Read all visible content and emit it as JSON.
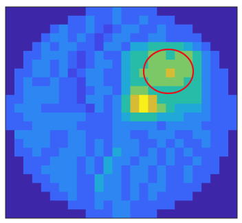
{
  "chart_data": {
    "type": "heatmap",
    "colormap": [
      "#3e26a8",
      "#4433c8",
      "#4147e6",
      "#3a64f7",
      "#2d86f2",
      "#1fa8d8",
      "#27bca8",
      "#7cc867",
      "#d6bc35",
      "#f9f01a"
    ],
    "values": [
      [
        0,
        0,
        0,
        0,
        0,
        0,
        0,
        0,
        0,
        3,
        3,
        3,
        4,
        3,
        3,
        3,
        3,
        0,
        0,
        0,
        0,
        0,
        0,
        0,
        0,
        0
      ],
      [
        0,
        0,
        0,
        0,
        0,
        0,
        0,
        3,
        3,
        4,
        3,
        3,
        4,
        3,
        3,
        4,
        3,
        3,
        3,
        0,
        0,
        0,
        0,
        0,
        0,
        0
      ],
      [
        0,
        0,
        0,
        0,
        0,
        3,
        4,
        3,
        3,
        4,
        3,
        2,
        3,
        4,
        4,
        3,
        3,
        4,
        3,
        3,
        3,
        0,
        0,
        0,
        0,
        0
      ],
      [
        0,
        0,
        0,
        0,
        3,
        4,
        4,
        3,
        4,
        3,
        2,
        3,
        4,
        4,
        3,
        3,
        4,
        4,
        3,
        3,
        3,
        3,
        0,
        0,
        0,
        0
      ],
      [
        0,
        0,
        0,
        3,
        4,
        3,
        4,
        4,
        3,
        3,
        2,
        4,
        4,
        3,
        5,
        5,
        6,
        6,
        6,
        6,
        5,
        4,
        3,
        0,
        0,
        0
      ],
      [
        0,
        0,
        3,
        3,
        4,
        4,
        4,
        3,
        2,
        3,
        4,
        3,
        3,
        5,
        6,
        6,
        7,
        7,
        6,
        7,
        7,
        6,
        4,
        3,
        0,
        0
      ],
      [
        0,
        0,
        3,
        4,
        4,
        3,
        4,
        3,
        2,
        3,
        4,
        4,
        3,
        5,
        6,
        6,
        7,
        7,
        7,
        7,
        7,
        6,
        4,
        3,
        0,
        0
      ],
      [
        0,
        3,
        3,
        4,
        4,
        3,
        4,
        2,
        3,
        4,
        4,
        3,
        3,
        5,
        6,
        7,
        7,
        7,
        8,
        7,
        7,
        6,
        4,
        3,
        3,
        0
      ],
      [
        0,
        3,
        4,
        3,
        3,
        4,
        3,
        3,
        2,
        4,
        4,
        3,
        3,
        5,
        6,
        6,
        7,
        7,
        7,
        7,
        6,
        6,
        4,
        3,
        3,
        0
      ],
      [
        0,
        3,
        4,
        4,
        4,
        4,
        3,
        3,
        2,
        3,
        4,
        4,
        3,
        5,
        7,
        7,
        6,
        6,
        6,
        6,
        6,
        6,
        4,
        3,
        3,
        0
      ],
      [
        3,
        3,
        4,
        4,
        4,
        4,
        3,
        3,
        2,
        4,
        4,
        3,
        4,
        6,
        8,
        9,
        8,
        6,
        6,
        6,
        6,
        6,
        4,
        3,
        3,
        3
      ],
      [
        3,
        4,
        4,
        4,
        3,
        3,
        3,
        3,
        3,
        2,
        4,
        3,
        4,
        6,
        8,
        9,
        8,
        7,
        6,
        5,
        5,
        5,
        4,
        3,
        3,
        3
      ],
      [
        3,
        3,
        4,
        4,
        4,
        4,
        4,
        4,
        4,
        3,
        3,
        3,
        4,
        5,
        6,
        6,
        6,
        5,
        5,
        5,
        4,
        4,
        4,
        3,
        3,
        3
      ],
      [
        3,
        3,
        3,
        4,
        4,
        4,
        4,
        4,
        3,
        3,
        3,
        3,
        4,
        4,
        4,
        4,
        4,
        3,
        4,
        4,
        4,
        4,
        3,
        3,
        3,
        3
      ],
      [
        0,
        4,
        4,
        4,
        4,
        3,
        3,
        4,
        4,
        3,
        3,
        3,
        4,
        4,
        3,
        3,
        4,
        4,
        4,
        3,
        3,
        4,
        4,
        3,
        3,
        0
      ],
      [
        0,
        3,
        4,
        4,
        4,
        3,
        3,
        4,
        4,
        3,
        4,
        3,
        4,
        4,
        4,
        3,
        3,
        4,
        3,
        4,
        3,
        3,
        4,
        3,
        3,
        0
      ],
      [
        0,
        3,
        3,
        4,
        3,
        3,
        4,
        4,
        4,
        3,
        4,
        3,
        5,
        4,
        4,
        3,
        4,
        3,
        4,
        3,
        4,
        3,
        3,
        3,
        3,
        0
      ],
      [
        0,
        0,
        3,
        3,
        3,
        4,
        4,
        4,
        3,
        4,
        3,
        5,
        4,
        4,
        3,
        4,
        4,
        3,
        4,
        3,
        3,
        4,
        3,
        3,
        0,
        0
      ],
      [
        0,
        0,
        3,
        3,
        4,
        4,
        4,
        4,
        3,
        4,
        3,
        5,
        4,
        3,
        4,
        4,
        3,
        4,
        3,
        3,
        4,
        3,
        3,
        3,
        0,
        0
      ],
      [
        0,
        0,
        0,
        3,
        3,
        4,
        4,
        4,
        3,
        3,
        5,
        4,
        4,
        3,
        4,
        4,
        3,
        4,
        3,
        3,
        4,
        3,
        3,
        0,
        0,
        0
      ],
      [
        0,
        0,
        0,
        0,
        3,
        3,
        4,
        4,
        3,
        3,
        5,
        4,
        4,
        3,
        4,
        3,
        4,
        4,
        3,
        3,
        3,
        3,
        0,
        0,
        0,
        0
      ],
      [
        0,
        0,
        0,
        0,
        0,
        3,
        3,
        4,
        3,
        3,
        4,
        4,
        4,
        3,
        4,
        3,
        4,
        3,
        3,
        3,
        3,
        0,
        0,
        0,
        0,
        0
      ],
      [
        0,
        0,
        0,
        0,
        0,
        0,
        0,
        3,
        3,
        3,
        4,
        3,
        4,
        4,
        3,
        3,
        3,
        3,
        3,
        0,
        0,
        0,
        0,
        0,
        0,
        0
      ],
      [
        0,
        0,
        0,
        0,
        0,
        0,
        0,
        0,
        0,
        3,
        3,
        3,
        4,
        4,
        3,
        3,
        3,
        0,
        0,
        0,
        0,
        0,
        0,
        0,
        0,
        0
      ]
    ]
  }
}
